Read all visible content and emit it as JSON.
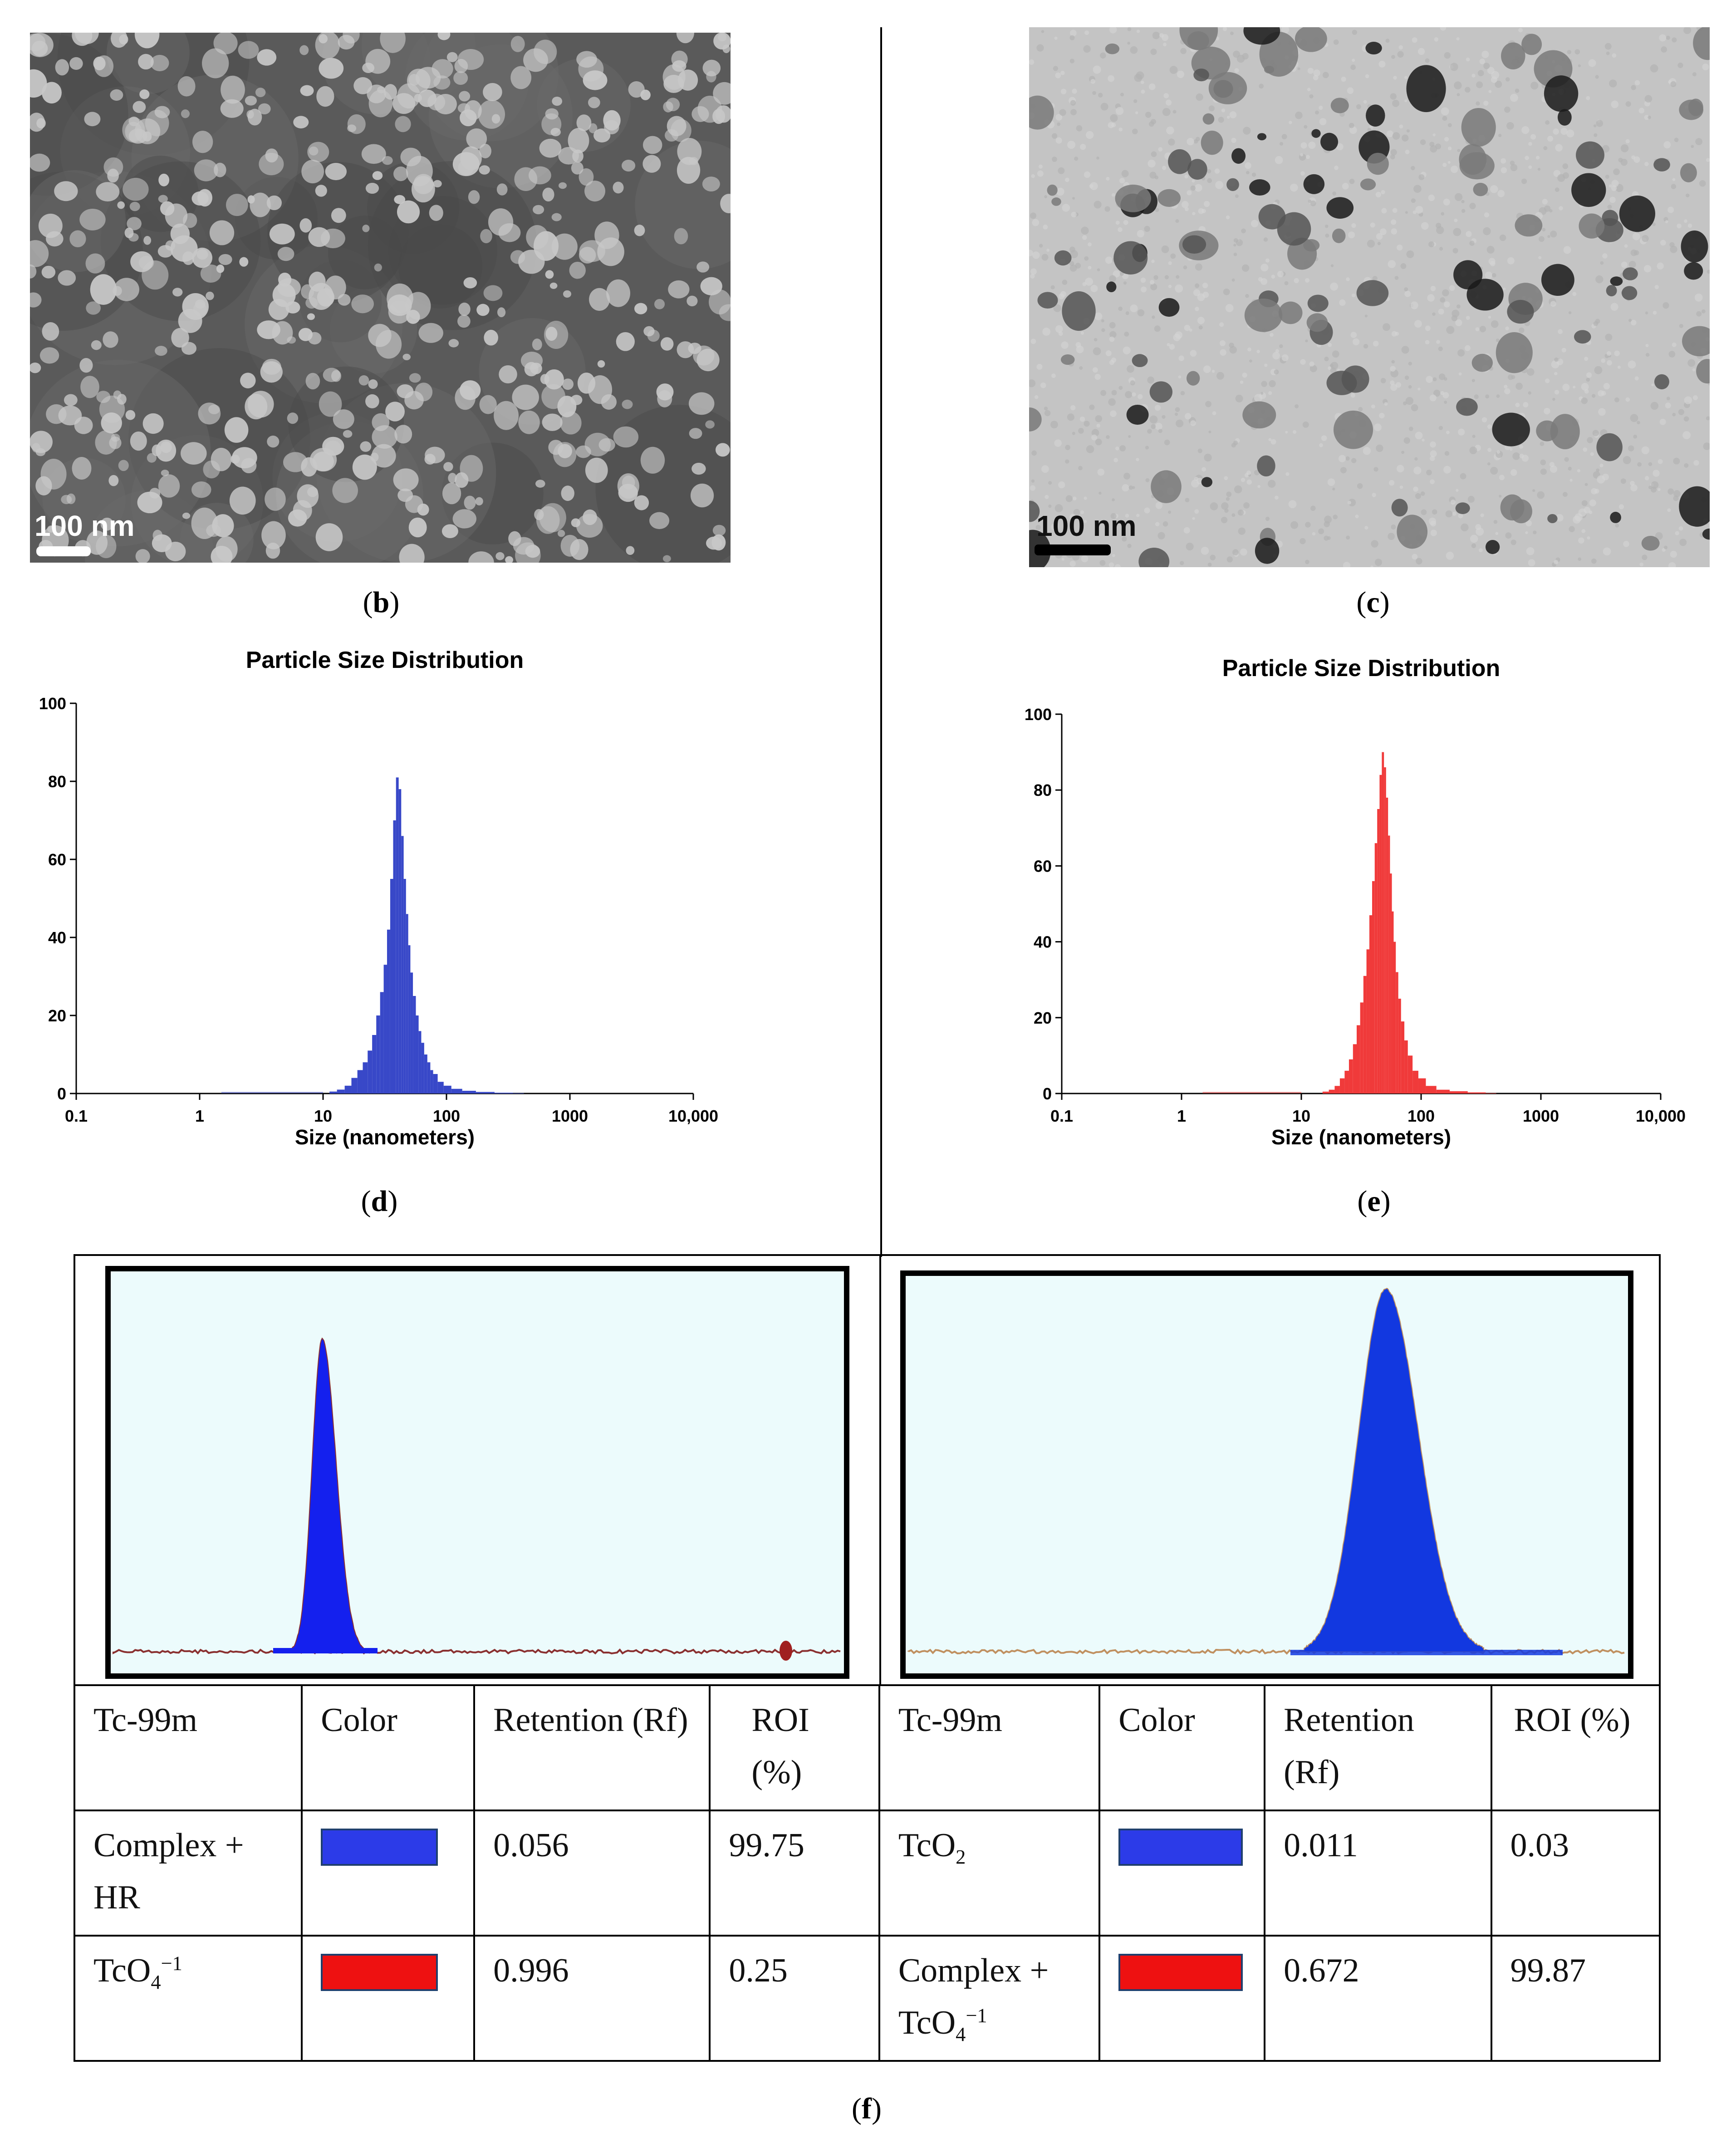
{
  "panels": {
    "b": {
      "label": "b",
      "scale_bar": "100 nm"
    },
    "c": {
      "label": "c",
      "scale_bar": "100 nm"
    },
    "d": {
      "label": "d"
    },
    "e": {
      "label": "e"
    },
    "f": {
      "label": "f"
    }
  },
  "psd_d": {
    "chart_data": {
      "type": "bar",
      "title": "Particle Size Distribution",
      "xlabel": "Size (nanometers)",
      "ylabel": "",
      "x_scale": "log",
      "xlim": [
        0.1,
        10000
      ],
      "ylim": [
        0,
        100
      ],
      "x_ticks": [
        "0.1",
        "1",
        "10",
        "100",
        "1000",
        "10,000"
      ],
      "y_ticks": [
        "0",
        "20",
        "40",
        "60",
        "80",
        "100"
      ],
      "color": "#3848c8",
      "x": [
        12,
        14,
        16,
        18,
        20,
        22,
        24,
        26,
        28,
        30,
        32,
        34,
        36,
        38,
        40,
        42,
        44,
        46,
        48,
        50,
        52,
        55,
        58,
        61,
        64,
        68,
        72,
        76,
        80,
        90,
        100,
        120,
        150,
        200,
        300,
        400
      ],
      "values": [
        0.5,
        1,
        2,
        4,
        6,
        8,
        11,
        15,
        20,
        26,
        33,
        42,
        55,
        70,
        81,
        78,
        66,
        55,
        46,
        38,
        31,
        25,
        20,
        16,
        13,
        10,
        8,
        6,
        5,
        3,
        2,
        1.2,
        0.7,
        0.4,
        0.2,
        0.1
      ]
    }
  },
  "psd_e": {
    "chart_data": {
      "type": "bar",
      "title": "Particle Size Distribution",
      "xlabel": "Size (nanometers)",
      "ylabel": "",
      "x_scale": "log",
      "xlim": [
        0.1,
        10000
      ],
      "ylim": [
        0,
        100
      ],
      "x_ticks": [
        "0.1",
        "1",
        "10",
        "100",
        "1000",
        "10,000"
      ],
      "y_ticks": [
        "0",
        "20",
        "40",
        "60",
        "80",
        "100"
      ],
      "color": "#f03a3a",
      "x": [
        16,
        18,
        20,
        22,
        24,
        26,
        28,
        30,
        32,
        34,
        36,
        38,
        40,
        42,
        44,
        46,
        48,
        50,
        52,
        54,
        56,
        58,
        60,
        63,
        66,
        70,
        75,
        80,
        90,
        100,
        120,
        150,
        200,
        300,
        400
      ],
      "values": [
        0.5,
        1,
        2,
        4,
        6,
        9,
        13,
        18,
        24,
        31,
        38,
        47,
        56,
        66,
        75,
        84,
        90,
        86,
        78,
        68,
        58,
        48,
        40,
        32,
        25,
        19,
        14,
        10,
        6,
        4,
        2,
        1,
        0.6,
        0.3,
        0.1
      ]
    }
  },
  "chromatograms": [
    {
      "name": "left",
      "peak_color": "#1420ee",
      "baseline_color": "#8a3030"
    },
    {
      "name": "right",
      "peak_color": "#1238e0",
      "baseline_color": "#c09060"
    }
  ],
  "table": {
    "headers_left": [
      "Tc-99m",
      "Color",
      "Retention (Rf)",
      "ROI (%)"
    ],
    "headers_right": [
      "Tc-99m",
      "Color",
      "Retention (Rf)",
      "ROI (%)"
    ],
    "row1_left": {
      "species": "Complex + HR",
      "color": "#2c3be8",
      "rf": "0.056",
      "roi": "99.75"
    },
    "row2_left": {
      "species": "TcO",
      "species_sub": "4",
      "species_sup": "−1",
      "color": "#ee1111",
      "rf": "0.996",
      "roi": "0.25"
    },
    "row1_right": {
      "species": "TcO",
      "species_sub": "2",
      "color": "#2c3be8",
      "rf": "0.011",
      "roi": "0.03"
    },
    "row2_right": {
      "species_line1": "Complex +",
      "species_line2": "TcO",
      "species_sub": "4",
      "species_sup": "−1",
      "color": "#ee1111",
      "rf": "0.672",
      "roi": "99.87"
    }
  }
}
